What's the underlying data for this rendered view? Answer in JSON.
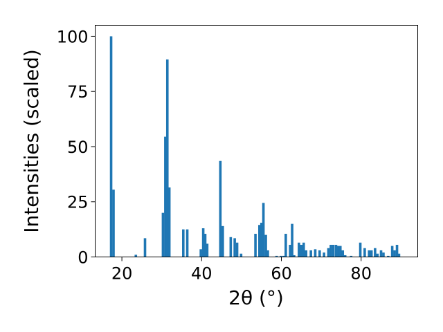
{
  "chart_data": {
    "type": "bar",
    "xlabel": "2θ (°)",
    "ylabel": "Intensities (scaled)",
    "xlim": [
      13.3,
      94.2
    ],
    "ylim": [
      0,
      105
    ],
    "xticks": [
      20,
      40,
      60,
      80
    ],
    "yticks": [
      0,
      25,
      50,
      75,
      100
    ],
    "grid": false,
    "color": "#1f77b4",
    "series": [
      {
        "x": [
          17.3,
          17.9,
          23.5,
          25.8,
          30.3,
          30.9,
          31.4,
          31.9,
          35.4,
          36.4,
          39.8,
          40.4,
          40.9,
          41.4,
          44.7,
          45.3,
          47.3,
          48.3,
          48.9,
          49.9,
          53.5,
          54.5,
          55.0,
          55.5,
          56.1,
          56.6,
          58.8,
          59.9,
          60.6,
          61.1,
          62.2,
          62.7,
          63.2,
          64.4,
          65.0,
          65.6,
          66.2,
          67.4,
          68.5,
          69.6,
          70.7,
          71.8,
          72.4,
          73.0,
          73.7,
          74.2,
          74.8,
          75.4,
          76.0,
          77.5,
          79.8,
          80.9,
          82.0,
          82.6,
          83.5,
          84.1,
          85.0,
          85.6,
          86.8,
          87.8,
          88.4,
          89.0,
          89.5
        ],
        "values": [
          100,
          30.5,
          1,
          8.5,
          20,
          54.5,
          89.5,
          31.5,
          12.5,
          12.5,
          3.5,
          13,
          10.5,
          6,
          43.5,
          14,
          9,
          8.5,
          6.5,
          1.5,
          10.5,
          14.5,
          15.5,
          24.5,
          10,
          3,
          0.5,
          0.5,
          0.5,
          10.5,
          5.5,
          15,
          0.8,
          6.5,
          5.5,
          6.5,
          3,
          3,
          3.5,
          3,
          2,
          4,
          5.5,
          5.5,
          5.5,
          5,
          5,
          3,
          0.8,
          0.5,
          6.5,
          4,
          3,
          3,
          4,
          1.5,
          3,
          2,
          0.5,
          5,
          3,
          5.5,
          1.5
        ]
      }
    ]
  }
}
